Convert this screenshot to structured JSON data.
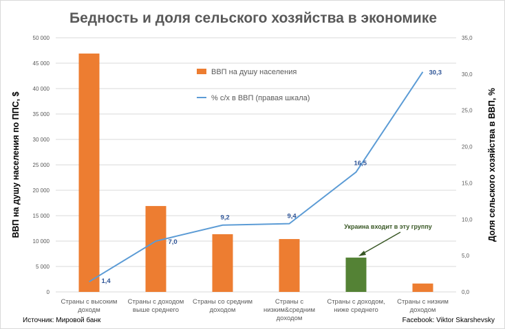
{
  "chart_data": {
    "type": "bar+line",
    "title": "Бедность и доля сельского хозяйства в экономике",
    "categories": [
      [
        "Страны с высоким",
        "доходм"
      ],
      [
        "Страны с доходом",
        "выше среднего"
      ],
      [
        "Страны со средним",
        "доходом"
      ],
      [
        "Страны с",
        "низким&средним",
        "доходом"
      ],
      [
        "Страны с доходом,",
        "ниже среднего"
      ],
      [
        "Страны с низким",
        "доходом"
      ]
    ],
    "series": [
      {
        "name": "ВВП на душу населения",
        "type": "bar",
        "axis": "left",
        "values": [
          46900,
          16900,
          11350,
          10400,
          6750,
          1650
        ],
        "color": "#ed7d31",
        "highlight_index": 4,
        "highlight_color": "#548235"
      },
      {
        "name": "% с/х в ВВП (правая шкала)",
        "type": "line",
        "axis": "right",
        "values": [
          1.4,
          7.0,
          9.2,
          9.4,
          16.5,
          30.3
        ],
        "data_labels": [
          "1,4",
          "7,0",
          "9,2",
          "9,4",
          "16,5",
          "30,3"
        ],
        "color": "#5b9bd5"
      }
    ],
    "ylabel": "ВВП на душу населения по ППС, $",
    "ylabel_right": "Доля сельского хозяйства в ВВП, %",
    "ylim": [
      0,
      50000
    ],
    "ylim_right": [
      0,
      35
    ],
    "yticks": [
      "0",
      "5 000",
      "10 000",
      "15 000",
      "20 000",
      "25 000",
      "30 000",
      "35 000",
      "40 000",
      "45 000",
      "50 000"
    ],
    "yticks_right": [
      "0,0",
      "5,0",
      "10,0",
      "15,0",
      "20,0",
      "25,0",
      "30,0",
      "35,0"
    ],
    "grid": true,
    "legend_position": "top-center",
    "annotation": "Украина входит в эту группу",
    "annotation_color": "#375623"
  },
  "footer": {
    "source": "Источник: Мировой банк",
    "credit": "Facebook: Viktor Skarshevsky"
  }
}
